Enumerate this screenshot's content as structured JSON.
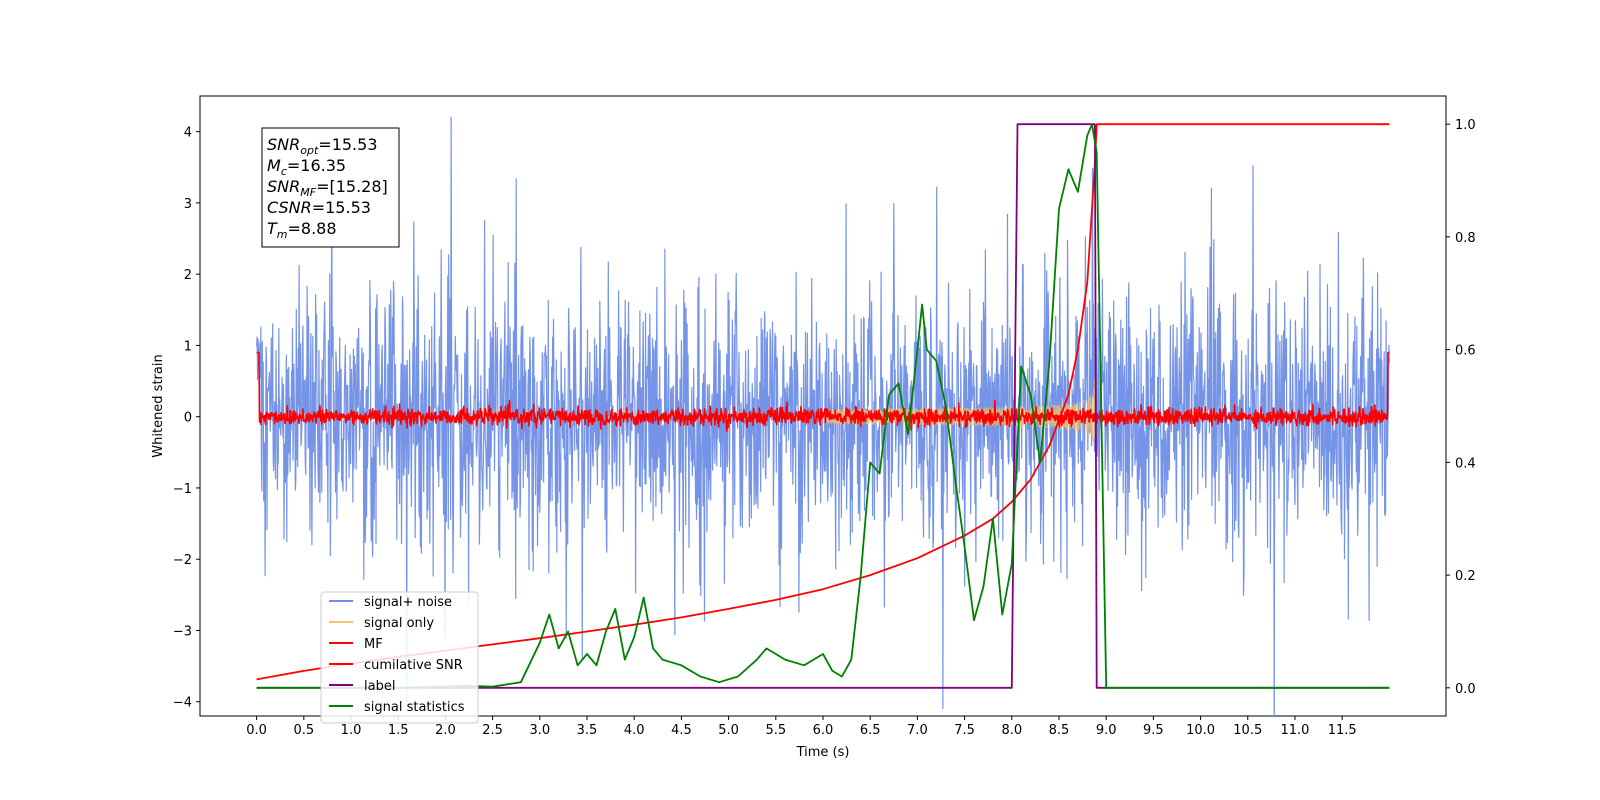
{
  "chart_data": {
    "type": "line",
    "title": "",
    "xlabel": "Time (s)",
    "ylabel": "Whitened strain",
    "xlim": [
      -0.6,
      12.6
    ],
    "ylim": [
      -4.2,
      4.5
    ],
    "y2lim": [
      -0.05,
      1.05
    ],
    "xticks": [
      "0.0",
      "0.5",
      "1.0",
      "1.5",
      "2.0",
      "2.5",
      "3.0",
      "3.5",
      "4.0",
      "4.5",
      "5.0",
      "5.5",
      "6.0",
      "6.5",
      "7.0",
      "7.5",
      "8.0",
      "8.5",
      "9.0",
      "9.5",
      "10.0",
      "10.5",
      "11.0",
      "11.5"
    ],
    "yticks": [
      "4",
      "3",
      "2",
      "1",
      "0",
      "−1",
      "−2",
      "−3",
      "−4"
    ],
    "y2ticks": [
      "1.0",
      "0.8",
      "0.6",
      "0.4",
      "0.2",
      "0.0"
    ],
    "grid": false,
    "legend_position": "lower-left",
    "annotation": {
      "lines": [
        {
          "sym": "SNR",
          "sub": "opt",
          "val": "=15.53"
        },
        {
          "sym": "M",
          "sub": "c",
          "val": "=16.35"
        },
        {
          "sym": "SNR",
          "sub": "MF",
          "val": "=[15.28]"
        },
        {
          "sym": "CSNR",
          "sub": "",
          "val": "=15.53"
        },
        {
          "sym": "T",
          "sub": "m",
          "val": "=8.88"
        }
      ]
    },
    "series": [
      {
        "name": "signal+ noise",
        "axis": "left",
        "color": "#6f8ee6",
        "style": "noise",
        "amplitude": 0.85,
        "x_range": [
          0.0,
          12.0
        ]
      },
      {
        "name": "signal only",
        "axis": "left",
        "color": "#f5c16c",
        "style": "chirp",
        "x_range": [
          6.0,
          8.88
        ],
        "peak": 1.0
      },
      {
        "name": "MF",
        "axis": "left",
        "color": "#ff0000",
        "style": "small-noise",
        "amplitude": 0.06,
        "x_range": [
          0.0,
          12.0
        ]
      },
      {
        "name": "cumilative SNR",
        "axis": "right",
        "color": "#ff0000",
        "x": [
          0.0,
          0.5,
          1.0,
          1.5,
          2.0,
          2.5,
          3.0,
          3.5,
          4.0,
          4.5,
          5.0,
          5.5,
          6.0,
          6.5,
          7.0,
          7.5,
          7.8,
          8.0,
          8.2,
          8.4,
          8.6,
          8.7,
          8.8,
          8.88,
          8.9,
          12.0
        ],
        "values": [
          0.015,
          0.03,
          0.043,
          0.055,
          0.066,
          0.077,
          0.088,
          0.1,
          0.112,
          0.125,
          0.14,
          0.156,
          0.175,
          0.2,
          0.23,
          0.27,
          0.3,
          0.33,
          0.37,
          0.43,
          0.52,
          0.6,
          0.72,
          0.93,
          1.0,
          1.0
        ]
      },
      {
        "name": "label",
        "axis": "right",
        "color": "#800080",
        "x": [
          0.0,
          8.0,
          8.06,
          8.88,
          8.9,
          12.0
        ],
        "values": [
          0.0,
          0.0,
          1.0,
          1.0,
          0.0,
          0.0
        ]
      },
      {
        "name": "signal statistics",
        "axis": "right",
        "color": "#008000",
        "x": [
          0.0,
          0.5,
          1.0,
          1.5,
          2.0,
          2.2,
          2.5,
          2.8,
          3.0,
          3.1,
          3.2,
          3.3,
          3.4,
          3.5,
          3.6,
          3.7,
          3.8,
          3.9,
          4.0,
          4.1,
          4.2,
          4.3,
          4.5,
          4.7,
          4.9,
          5.1,
          5.3,
          5.4,
          5.5,
          5.6,
          5.8,
          5.9,
          6.0,
          6.1,
          6.2,
          6.3,
          6.4,
          6.5,
          6.6,
          6.7,
          6.8,
          6.9,
          7.0,
          7.05,
          7.1,
          7.2,
          7.3,
          7.4,
          7.5,
          7.6,
          7.7,
          7.8,
          7.9,
          8.0,
          8.1,
          8.2,
          8.3,
          8.4,
          8.5,
          8.6,
          8.7,
          8.8,
          8.85,
          8.9,
          9.0,
          9.5,
          10.0,
          11.0,
          12.0
        ],
        "values": [
          0.0,
          0.0,
          0.0,
          0.0,
          0.002,
          0.004,
          0.002,
          0.01,
          0.08,
          0.13,
          0.07,
          0.1,
          0.04,
          0.06,
          0.04,
          0.1,
          0.14,
          0.05,
          0.09,
          0.16,
          0.07,
          0.05,
          0.04,
          0.02,
          0.01,
          0.02,
          0.05,
          0.07,
          0.06,
          0.05,
          0.04,
          0.05,
          0.06,
          0.03,
          0.02,
          0.05,
          0.2,
          0.4,
          0.38,
          0.52,
          0.54,
          0.45,
          0.6,
          0.68,
          0.6,
          0.58,
          0.5,
          0.37,
          0.25,
          0.12,
          0.18,
          0.3,
          0.13,
          0.22,
          0.57,
          0.52,
          0.4,
          0.58,
          0.85,
          0.92,
          0.88,
          0.98,
          1.0,
          0.95,
          0.0,
          0.0,
          0.0,
          0.0,
          0.0
        ]
      }
    ]
  }
}
